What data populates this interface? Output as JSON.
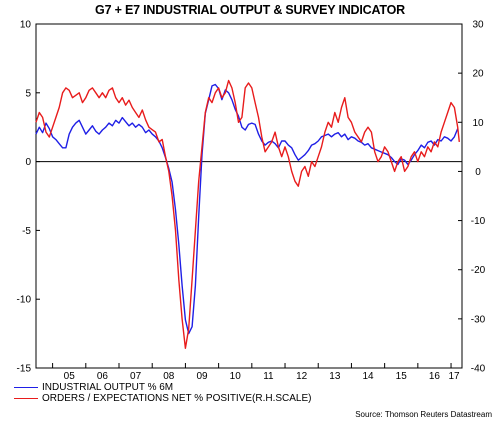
{
  "chart_data": {
    "type": "line",
    "title": "G7 + E7 INDUSTRIAL OUTPUT & SURVEY INDICATOR",
    "source": "Source: Thomson Reuters Datastream",
    "x_tick_labels": [
      "05",
      "06",
      "07",
      "08",
      "09",
      "10",
      "11",
      "12",
      "13",
      "14",
      "15",
      "16",
      "17"
    ],
    "xlim": [
      2004.5,
      2017.33
    ],
    "ylim_left": [
      -15,
      10
    ],
    "ylim_right": [
      -40,
      30
    ],
    "y_ticks_left": [
      "10",
      "5",
      "0",
      "-5",
      "-10",
      "-15"
    ],
    "y_ticks_right": [
      "30",
      "20",
      "10",
      "0",
      "-10",
      "-20",
      "-30",
      "-40"
    ],
    "zero_line": true,
    "legend_placement": "bottom-left",
    "series": [
      {
        "name": "INDUSTRIAL OUTPUT % 6M",
        "axis": "left",
        "color": "#1f1fe6",
        "points": [
          [
            2004.5,
            2.0
          ],
          [
            2004.6,
            2.5
          ],
          [
            2004.7,
            2.1
          ],
          [
            2004.8,
            2.8
          ],
          [
            2004.9,
            2.4
          ],
          [
            2005.0,
            1.8
          ],
          [
            2005.1,
            1.6
          ],
          [
            2005.2,
            1.3
          ],
          [
            2005.3,
            1.0
          ],
          [
            2005.4,
            1.0
          ],
          [
            2005.5,
            2.0
          ],
          [
            2005.6,
            2.5
          ],
          [
            2005.7,
            2.8
          ],
          [
            2005.8,
            3.0
          ],
          [
            2005.9,
            2.5
          ],
          [
            2006.0,
            2.0
          ],
          [
            2006.1,
            2.3
          ],
          [
            2006.2,
            2.6
          ],
          [
            2006.3,
            2.2
          ],
          [
            2006.4,
            2.0
          ],
          [
            2006.5,
            2.3
          ],
          [
            2006.6,
            2.5
          ],
          [
            2006.7,
            2.8
          ],
          [
            2006.8,
            2.6
          ],
          [
            2006.9,
            3.0
          ],
          [
            2007.0,
            2.8
          ],
          [
            2007.1,
            3.2
          ],
          [
            2007.2,
            2.9
          ],
          [
            2007.3,
            2.6
          ],
          [
            2007.4,
            2.8
          ],
          [
            2007.5,
            2.5
          ],
          [
            2007.6,
            2.7
          ],
          [
            2007.7,
            2.5
          ],
          [
            2007.8,
            2.1
          ],
          [
            2007.9,
            2.3
          ],
          [
            2008.0,
            2.0
          ],
          [
            2008.1,
            1.8
          ],
          [
            2008.2,
            1.5
          ],
          [
            2008.3,
            1.0
          ],
          [
            2008.4,
            0.3
          ],
          [
            2008.5,
            -0.5
          ],
          [
            2008.6,
            -1.5
          ],
          [
            2008.7,
            -3.5
          ],
          [
            2008.8,
            -6.0
          ],
          [
            2008.9,
            -9.0
          ],
          [
            2009.0,
            -11.5
          ],
          [
            2009.1,
            -12.5
          ],
          [
            2009.2,
            -12.0
          ],
          [
            2009.3,
            -9.0
          ],
          [
            2009.4,
            -4.0
          ],
          [
            2009.5,
            0.5
          ],
          [
            2009.6,
            3.5
          ],
          [
            2009.7,
            4.5
          ],
          [
            2009.8,
            5.5
          ],
          [
            2009.9,
            5.6
          ],
          [
            2010.0,
            5.3
          ],
          [
            2010.1,
            4.5
          ],
          [
            2010.2,
            5.2
          ],
          [
            2010.3,
            5.0
          ],
          [
            2010.4,
            4.5
          ],
          [
            2010.5,
            3.8
          ],
          [
            2010.6,
            3.3
          ],
          [
            2010.7,
            2.5
          ],
          [
            2010.8,
            2.3
          ],
          [
            2010.9,
            2.7
          ],
          [
            2011.0,
            2.8
          ],
          [
            2011.1,
            2.7
          ],
          [
            2011.2,
            2.0
          ],
          [
            2011.3,
            1.5
          ],
          [
            2011.4,
            1.2
          ],
          [
            2011.5,
            1.4
          ],
          [
            2011.6,
            1.5
          ],
          [
            2011.7,
            1.3
          ],
          [
            2011.8,
            1.0
          ],
          [
            2011.9,
            1.5
          ],
          [
            2012.0,
            1.5
          ],
          [
            2012.1,
            1.2
          ],
          [
            2012.2,
            1.0
          ],
          [
            2012.3,
            0.5
          ],
          [
            2012.4,
            0.1
          ],
          [
            2012.5,
            0.3
          ],
          [
            2012.6,
            0.5
          ],
          [
            2012.7,
            0.8
          ],
          [
            2012.8,
            1.2
          ],
          [
            2012.9,
            1.3
          ],
          [
            2013.0,
            1.5
          ],
          [
            2013.1,
            1.8
          ],
          [
            2013.2,
            1.9
          ],
          [
            2013.3,
            2.0
          ],
          [
            2013.4,
            1.8
          ],
          [
            2013.5,
            2.0
          ],
          [
            2013.6,
            2.1
          ],
          [
            2013.7,
            1.8
          ],
          [
            2013.8,
            2.0
          ],
          [
            2013.9,
            1.6
          ],
          [
            2014.0,
            1.8
          ],
          [
            2014.1,
            1.7
          ],
          [
            2014.2,
            1.5
          ],
          [
            2014.3,
            1.4
          ],
          [
            2014.4,
            1.2
          ],
          [
            2014.5,
            1.3
          ],
          [
            2014.6,
            1.0
          ],
          [
            2014.7,
            0.9
          ],
          [
            2014.8,
            0.8
          ],
          [
            2014.9,
            0.7
          ],
          [
            2015.0,
            0.6
          ],
          [
            2015.1,
            0.5
          ],
          [
            2015.2,
            0.3
          ],
          [
            2015.3,
            0.0
          ],
          [
            2015.4,
            -0.2
          ],
          [
            2015.5,
            0.2
          ],
          [
            2015.6,
            0.1
          ],
          [
            2015.7,
            -0.2
          ],
          [
            2015.8,
            0.1
          ],
          [
            2015.9,
            0.5
          ],
          [
            2016.0,
            0.8
          ],
          [
            2016.1,
            1.2
          ],
          [
            2016.2,
            1.0
          ],
          [
            2016.3,
            1.4
          ],
          [
            2016.4,
            1.5
          ],
          [
            2016.5,
            1.2
          ],
          [
            2016.6,
            1.6
          ],
          [
            2016.7,
            1.5
          ],
          [
            2016.8,
            1.8
          ],
          [
            2016.9,
            1.7
          ],
          [
            2017.0,
            1.5
          ],
          [
            2017.1,
            1.8
          ],
          [
            2017.2,
            2.4
          ]
        ]
      },
      {
        "name": "ORDERS / EXPECTATIONS NET % POSITIVE(R.H.SCALE)",
        "axis": "right",
        "color": "#e81c1c",
        "points": [
          [
            2004.5,
            10.0
          ],
          [
            2004.6,
            12.0
          ],
          [
            2004.7,
            11.0
          ],
          [
            2004.8,
            8.0
          ],
          [
            2004.9,
            7.0
          ],
          [
            2005.0,
            9.0
          ],
          [
            2005.1,
            11.0
          ],
          [
            2005.2,
            13.0
          ],
          [
            2005.3,
            16.0
          ],
          [
            2005.4,
            17.0
          ],
          [
            2005.5,
            16.5
          ],
          [
            2005.6,
            15.0
          ],
          [
            2005.7,
            15.5
          ],
          [
            2005.8,
            16.0
          ],
          [
            2005.9,
            14.0
          ],
          [
            2006.0,
            15.0
          ],
          [
            2006.1,
            16.5
          ],
          [
            2006.2,
            17.0
          ],
          [
            2006.3,
            16.0
          ],
          [
            2006.4,
            15.0
          ],
          [
            2006.5,
            16.0
          ],
          [
            2006.6,
            15.0
          ],
          [
            2006.7,
            16.5
          ],
          [
            2006.8,
            17.0
          ],
          [
            2006.9,
            15.0
          ],
          [
            2007.0,
            14.0
          ],
          [
            2007.1,
            15.0
          ],
          [
            2007.2,
            13.5
          ],
          [
            2007.3,
            14.5
          ],
          [
            2007.4,
            13.0
          ],
          [
            2007.5,
            12.0
          ],
          [
            2007.6,
            11.0
          ],
          [
            2007.7,
            12.5
          ],
          [
            2007.8,
            10.5
          ],
          [
            2007.9,
            9.0
          ],
          [
            2008.0,
            8.5
          ],
          [
            2008.1,
            8.0
          ],
          [
            2008.2,
            6.0
          ],
          [
            2008.3,
            6.5
          ],
          [
            2008.4,
            3.0
          ],
          [
            2008.5,
            0.0
          ],
          [
            2008.6,
            -5.0
          ],
          [
            2008.7,
            -12.0
          ],
          [
            2008.8,
            -22.0
          ],
          [
            2008.9,
            -30.0
          ],
          [
            2009.0,
            -36.0
          ],
          [
            2009.1,
            -32.0
          ],
          [
            2009.2,
            -22.0
          ],
          [
            2009.3,
            -12.0
          ],
          [
            2009.4,
            -2.0
          ],
          [
            2009.5,
            5.0
          ],
          [
            2009.6,
            12.0
          ],
          [
            2009.7,
            15.0
          ],
          [
            2009.8,
            14.0
          ],
          [
            2009.9,
            16.0
          ],
          [
            2010.0,
            17.0
          ],
          [
            2010.1,
            15.0
          ],
          [
            2010.2,
            16.0
          ],
          [
            2010.3,
            18.5
          ],
          [
            2010.4,
            17.0
          ],
          [
            2010.5,
            14.0
          ],
          [
            2010.6,
            10.0
          ],
          [
            2010.7,
            11.0
          ],
          [
            2010.8,
            17.0
          ],
          [
            2010.9,
            18.0
          ],
          [
            2011.0,
            17.0
          ],
          [
            2011.1,
            14.0
          ],
          [
            2011.2,
            11.0
          ],
          [
            2011.3,
            7.0
          ],
          [
            2011.4,
            4.0
          ],
          [
            2011.5,
            5.0
          ],
          [
            2011.6,
            6.0
          ],
          [
            2011.7,
            8.0
          ],
          [
            2011.8,
            5.0
          ],
          [
            2011.9,
            3.0
          ],
          [
            2012.0,
            5.0
          ],
          [
            2012.1,
            3.0
          ],
          [
            2012.2,
            0.0
          ],
          [
            2012.3,
            -2.0
          ],
          [
            2012.4,
            -3.0
          ],
          [
            2012.5,
            0.0
          ],
          [
            2012.6,
            1.0
          ],
          [
            2012.7,
            -1.0
          ],
          [
            2012.8,
            2.0
          ],
          [
            2012.9,
            1.0
          ],
          [
            2013.0,
            3.0
          ],
          [
            2013.1,
            5.0
          ],
          [
            2013.2,
            8.0
          ],
          [
            2013.3,
            10.0
          ],
          [
            2013.4,
            9.0
          ],
          [
            2013.5,
            12.0
          ],
          [
            2013.6,
            10.0
          ],
          [
            2013.7,
            13.0
          ],
          [
            2013.8,
            15.0
          ],
          [
            2013.9,
            11.0
          ],
          [
            2014.0,
            10.0
          ],
          [
            2014.1,
            8.0
          ],
          [
            2014.2,
            7.0
          ],
          [
            2014.3,
            6.0
          ],
          [
            2014.4,
            8.0
          ],
          [
            2014.5,
            9.0
          ],
          [
            2014.6,
            8.0
          ],
          [
            2014.7,
            4.0
          ],
          [
            2014.8,
            2.0
          ],
          [
            2014.9,
            3.0
          ],
          [
            2015.0,
            5.0
          ],
          [
            2015.1,
            4.0
          ],
          [
            2015.2,
            2.0
          ],
          [
            2015.3,
            0.0
          ],
          [
            2015.4,
            2.0
          ],
          [
            2015.5,
            3.0
          ],
          [
            2015.6,
            0.0
          ],
          [
            2015.7,
            1.0
          ],
          [
            2015.8,
            3.0
          ],
          [
            2015.9,
            4.0
          ],
          [
            2016.0,
            2.0
          ],
          [
            2016.1,
            4.0
          ],
          [
            2016.2,
            3.0
          ],
          [
            2016.3,
            5.0
          ],
          [
            2016.4,
            4.0
          ],
          [
            2016.5,
            6.0
          ],
          [
            2016.6,
            5.0
          ],
          [
            2016.7,
            8.0
          ],
          [
            2016.8,
            10.0
          ],
          [
            2016.9,
            12.0
          ],
          [
            2017.0,
            14.0
          ],
          [
            2017.1,
            13.0
          ],
          [
            2017.2,
            9.0
          ],
          [
            2017.25,
            6.0
          ]
        ]
      }
    ]
  }
}
